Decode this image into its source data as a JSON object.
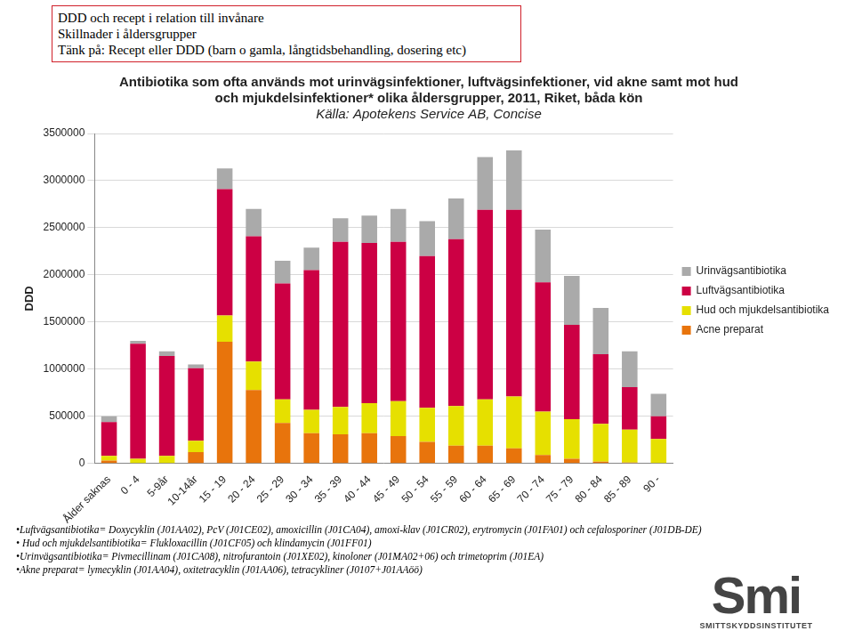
{
  "header": {
    "lines": [
      "DDD och recept i relation till invånare",
      "Skillnader i åldersgrupper",
      "Tänk på: Recept eller DDD (barn o gamla, långtidsbehandling, dosering etc)"
    ]
  },
  "chart_data": {
    "type": "bar",
    "stacked": true,
    "title": [
      "Antibiotika som ofta används mot urinvägsinfektioner, luftvägsinfektioner, vid akne samt mot hud",
      "och mjukdelsinfektioner* olika åldersgrupper, 2011, Riket, båda kön"
    ],
    "subtitle": "Källa: Apotekens Service AB, Concise",
    "y_label": "DDD",
    "categories": [
      "Ålder saknas",
      "0 - 4",
      "5-9år",
      "10-14år",
      "15 - 19",
      "20 - 24",
      "25 - 29",
      "30 - 34",
      "35 - 39",
      "40 - 44",
      "45 - 49",
      "50 - 54",
      "55 - 59",
      "60 - 64",
      "65 - 69",
      "70 - 74",
      "75 - 79",
      "80 - 84",
      "85 - 89",
      "90 -"
    ],
    "series": [
      {
        "name": "Acne preparat",
        "color": "#e8740c",
        "values": [
          30000,
          5000,
          5000,
          120000,
          1290000,
          780000,
          430000,
          320000,
          310000,
          320000,
          290000,
          230000,
          190000,
          190000,
          160000,
          90000,
          50000,
          20000,
          10000,
          5000
        ]
      },
      {
        "name": "Hud och mjukdelsantibiotika",
        "color": "#e6e000",
        "values": [
          50000,
          45000,
          75000,
          120000,
          280000,
          300000,
          250000,
          250000,
          290000,
          320000,
          370000,
          360000,
          420000,
          490000,
          550000,
          460000,
          420000,
          400000,
          350000,
          255000
        ]
      },
      {
        "name": "Luftvägsantibiotika",
        "color": "#cc0044",
        "values": [
          360000,
          1220000,
          1060000,
          770000,
          1340000,
          1330000,
          1230000,
          1480000,
          1750000,
          1700000,
          1690000,
          1610000,
          1770000,
          2010000,
          1980000,
          1370000,
          1000000,
          740000,
          450000,
          240000
        ]
      },
      {
        "name": "Urinvägsantibiotika",
        "color": "#aaaaaa",
        "values": [
          60000,
          30000,
          50000,
          40000,
          220000,
          290000,
          240000,
          240000,
          250000,
          290000,
          350000,
          370000,
          430000,
          560000,
          630000,
          560000,
          520000,
          490000,
          380000,
          240000
        ]
      }
    ],
    "ylim": [
      0,
      3500000
    ],
    "yticks": [
      0,
      500000,
      1000000,
      1500000,
      2000000,
      2500000,
      3000000,
      3500000
    ],
    "grid": true,
    "legend": "right"
  },
  "footnotes": [
    "•Luftvägsantibiotika= Doxycyklin (J01AA02), PcV (J01CE02), amoxicillin (J01CA04), amoxi-klav (J01CR02), erytromycin (J01FA01) och cefalosporiner (J01DB-DE)",
    "• Hud och mjukdelsantibiotika= Flukloxacillin (J01CF05) och klindamycin (J01FF01)",
    "•Urinvägsantibiotika= Pivmecillinam (J01CA08), nitrofurantoin (J01XE02), kinoloner (J01MA02+06) och trimetoprim (J01EA)",
    "•Akne preparat= lymecyklin (J01AA04), oxitetracyklin (J01AA06), tetracykliner (J0107+J01AAöö)"
  ],
  "logo": {
    "text": "Smi",
    "subtext": "SMITTSKYDDSINSTITUTET"
  }
}
